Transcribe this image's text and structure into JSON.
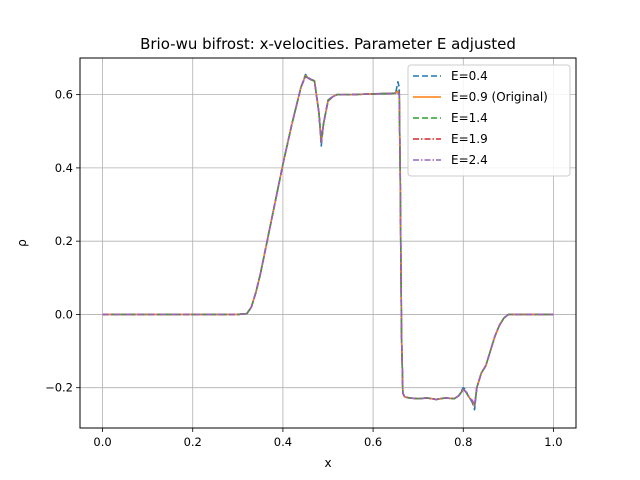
{
  "chart_data": {
    "type": "line",
    "title": "Brio-wu bifrost: x-velocities. Parameter E adjusted",
    "xlabel": "x",
    "ylabel": "ρ",
    "xlim": [
      -0.05,
      1.05
    ],
    "ylim": [
      -0.31,
      0.7
    ],
    "grid": true,
    "legend_placement": "top-right",
    "xticks": [
      0.0,
      0.2,
      0.4,
      0.6,
      0.8,
      1.0
    ],
    "xtick_labels": [
      "0.0",
      "0.2",
      "0.4",
      "0.6",
      "0.8",
      "1.0"
    ],
    "yticks": [
      -0.2,
      0.0,
      0.2,
      0.4,
      0.6
    ],
    "ytick_labels": [
      "−0.2",
      "0.0",
      "0.2",
      "0.4",
      "0.6"
    ],
    "x": [
      0.0,
      0.05,
      0.1,
      0.15,
      0.2,
      0.25,
      0.3,
      0.32,
      0.33,
      0.34,
      0.35,
      0.36,
      0.38,
      0.4,
      0.42,
      0.44,
      0.45,
      0.46,
      0.47,
      0.48,
      0.485,
      0.49,
      0.5,
      0.51,
      0.52,
      0.55,
      0.6,
      0.63,
      0.65,
      0.655,
      0.658,
      0.66,
      0.663,
      0.666,
      0.67,
      0.68,
      0.7,
      0.72,
      0.74,
      0.76,
      0.78,
      0.79,
      0.8,
      0.805,
      0.81,
      0.815,
      0.82,
      0.825,
      0.83,
      0.84,
      0.85,
      0.86,
      0.87,
      0.88,
      0.89,
      0.9,
      0.95,
      1.0
    ],
    "series": [
      {
        "name": "E=0.4",
        "color": "#1f77b4",
        "dash": "6,3",
        "values": [
          0.0,
          0.0,
          0.0,
          0.0,
          0.0,
          0.0,
          0.0,
          0.002,
          0.02,
          0.06,
          0.11,
          0.17,
          0.29,
          0.41,
          0.52,
          0.62,
          0.655,
          0.643,
          0.638,
          0.55,
          0.46,
          0.52,
          0.585,
          0.595,
          0.6,
          0.6,
          0.602,
          0.603,
          0.604,
          0.635,
          0.62,
          0.4,
          -0.05,
          -0.215,
          -0.225,
          -0.228,
          -0.23,
          -0.228,
          -0.232,
          -0.228,
          -0.23,
          -0.222,
          -0.2,
          -0.205,
          -0.22,
          -0.23,
          -0.24,
          -0.26,
          -0.2,
          -0.16,
          -0.14,
          -0.1,
          -0.06,
          -0.03,
          -0.01,
          0.0,
          0.0,
          0.0
        ]
      },
      {
        "name": "E=0.9 (Original)",
        "color": "#ff7f0e",
        "dash": "",
        "values": [
          0.0,
          0.0,
          0.0,
          0.0,
          0.0,
          0.0,
          0.0,
          0.002,
          0.02,
          0.06,
          0.11,
          0.17,
          0.29,
          0.41,
          0.52,
          0.62,
          0.652,
          0.642,
          0.638,
          0.55,
          0.47,
          0.52,
          0.583,
          0.594,
          0.6,
          0.6,
          0.602,
          0.603,
          0.604,
          0.61,
          0.6,
          0.4,
          -0.05,
          -0.215,
          -0.225,
          -0.228,
          -0.23,
          -0.228,
          -0.232,
          -0.228,
          -0.23,
          -0.222,
          -0.205,
          -0.21,
          -0.22,
          -0.23,
          -0.235,
          -0.25,
          -0.2,
          -0.16,
          -0.14,
          -0.1,
          -0.06,
          -0.03,
          -0.01,
          0.0,
          0.0,
          0.0
        ]
      },
      {
        "name": "E=1.4",
        "color": "#2ca02c",
        "dash": "6,3",
        "values": [
          0.0,
          0.0,
          0.0,
          0.0,
          0.0,
          0.0,
          0.0,
          0.002,
          0.02,
          0.06,
          0.11,
          0.17,
          0.29,
          0.41,
          0.52,
          0.62,
          0.65,
          0.642,
          0.637,
          0.55,
          0.47,
          0.52,
          0.582,
          0.594,
          0.6,
          0.6,
          0.602,
          0.603,
          0.604,
          0.605,
          0.6,
          0.4,
          -0.05,
          -0.215,
          -0.225,
          -0.228,
          -0.23,
          -0.228,
          -0.232,
          -0.228,
          -0.23,
          -0.222,
          -0.205,
          -0.21,
          -0.22,
          -0.23,
          -0.235,
          -0.25,
          -0.2,
          -0.16,
          -0.14,
          -0.1,
          -0.06,
          -0.03,
          -0.01,
          0.0,
          0.0,
          0.0
        ]
      },
      {
        "name": "E=1.9",
        "color": "#d62728",
        "dash": "6,2,1.5,2",
        "values": [
          0.0,
          0.0,
          0.0,
          0.0,
          0.0,
          0.0,
          0.0,
          0.002,
          0.02,
          0.06,
          0.11,
          0.17,
          0.29,
          0.41,
          0.52,
          0.62,
          0.65,
          0.642,
          0.637,
          0.55,
          0.47,
          0.52,
          0.582,
          0.594,
          0.6,
          0.6,
          0.602,
          0.603,
          0.604,
          0.605,
          0.6,
          0.4,
          -0.05,
          -0.215,
          -0.225,
          -0.228,
          -0.23,
          -0.228,
          -0.232,
          -0.228,
          -0.23,
          -0.222,
          -0.205,
          -0.21,
          -0.22,
          -0.23,
          -0.235,
          -0.25,
          -0.2,
          -0.16,
          -0.14,
          -0.1,
          -0.06,
          -0.03,
          -0.01,
          0.0,
          0.0,
          0.0
        ]
      },
      {
        "name": "E=2.4",
        "color": "#9467bd",
        "dash": "6,2,1.5,2",
        "values": [
          0.0,
          0.0,
          0.0,
          0.0,
          0.0,
          0.0,
          0.0,
          0.002,
          0.02,
          0.06,
          0.11,
          0.17,
          0.29,
          0.41,
          0.52,
          0.62,
          0.65,
          0.642,
          0.637,
          0.55,
          0.47,
          0.52,
          0.582,
          0.594,
          0.6,
          0.6,
          0.602,
          0.603,
          0.604,
          0.605,
          0.6,
          0.4,
          -0.05,
          -0.215,
          -0.225,
          -0.228,
          -0.23,
          -0.228,
          -0.232,
          -0.228,
          -0.23,
          -0.222,
          -0.205,
          -0.21,
          -0.22,
          -0.23,
          -0.235,
          -0.25,
          -0.2,
          -0.16,
          -0.14,
          -0.1,
          -0.06,
          -0.03,
          -0.01,
          0.0,
          0.0,
          0.0
        ]
      }
    ]
  }
}
